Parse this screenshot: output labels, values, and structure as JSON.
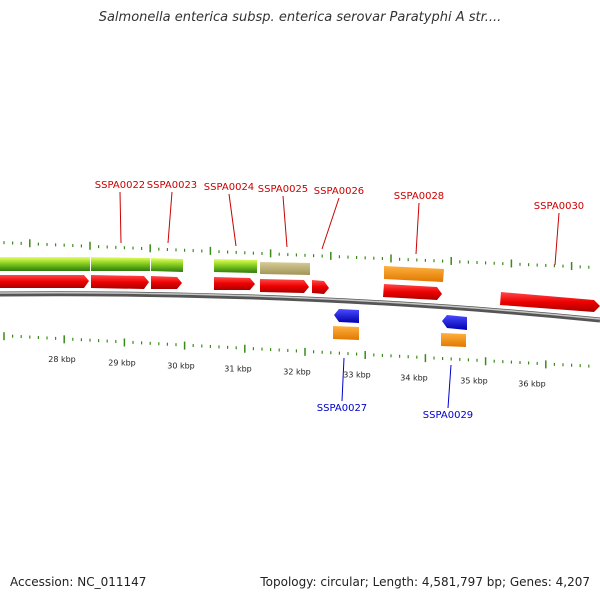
{
  "title": "Salmonella enterica subsp. enterica serovar Paratyphi A str....",
  "accession": "Accession: NC_011147",
  "stats": "Topology: circular; Length: 4,581,797 bp; Genes: 4,207",
  "colors": {
    "forward_label": "#cc0000",
    "reverse_label": "#0000cc",
    "tick": "#3a8a1a",
    "backbone": "#888888"
  },
  "scale": {
    "ticks": [
      {
        "label": "28 kbp"
      },
      {
        "label": "29 kbp"
      },
      {
        "label": "30 kbp"
      },
      {
        "label": "31 kbp"
      },
      {
        "label": "32 kbp"
      },
      {
        "label": "33 kbp"
      },
      {
        "label": "34 kbp"
      },
      {
        "label": "35 kbp"
      },
      {
        "label": "36 kbp"
      }
    ]
  },
  "gene_labels": [
    {
      "name": "SSPA0022",
      "strand": "forward"
    },
    {
      "name": "SSPA0023",
      "strand": "forward"
    },
    {
      "name": "SSPA0024",
      "strand": "forward"
    },
    {
      "name": "SSPA0025",
      "strand": "forward"
    },
    {
      "name": "SSPA0026",
      "strand": "forward"
    },
    {
      "name": "SSPA0028",
      "strand": "forward"
    },
    {
      "name": "SSPA0030",
      "strand": "forward"
    },
    {
      "name": "SSPA0027",
      "strand": "reverse"
    },
    {
      "name": "SSPA0029",
      "strand": "reverse"
    }
  ]
}
